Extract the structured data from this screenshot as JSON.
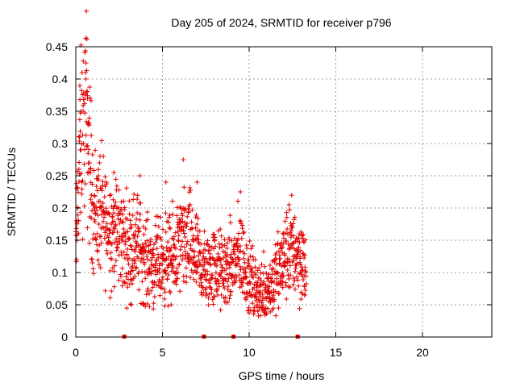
{
  "chart_data": {
    "type": "scatter",
    "title": "Day 205 of 2024, SRMTID for receiver p796",
    "xlabel": "GPS time / hours",
    "ylabel": "SRMTID / TECUs",
    "xlim": [
      0,
      24
    ],
    "ylim": [
      0,
      0.45
    ],
    "xticks": [
      "0",
      "5",
      "10",
      "15",
      "20"
    ],
    "yticks": [
      "0",
      "0.05",
      "0.1",
      "0.15",
      "0.2",
      "0.25",
      "0.3",
      "0.35",
      "0.4",
      "0.45"
    ],
    "grid": true,
    "marker": "plus",
    "color": "#e00000",
    "x_data_extent": [
      0,
      13.3
    ],
    "gap_markers_x": [
      2.8,
      7.4,
      9.1,
      12.8
    ],
    "series": [
      {
        "name": "SRMTID",
        "trend": [
          {
            "x": 0.0,
            "y": 0.13
          },
          {
            "x": 0.2,
            "y": 0.28
          },
          {
            "x": 0.6,
            "y": 0.35
          },
          {
            "x": 1.0,
            "y": 0.2
          },
          {
            "x": 1.5,
            "y": 0.19
          },
          {
            "x": 2.0,
            "y": 0.17
          },
          {
            "x": 2.5,
            "y": 0.16
          },
          {
            "x": 3.0,
            "y": 0.14
          },
          {
            "x": 3.5,
            "y": 0.15
          },
          {
            "x": 4.0,
            "y": 0.12
          },
          {
            "x": 4.5,
            "y": 0.11
          },
          {
            "x": 5.0,
            "y": 0.12
          },
          {
            "x": 5.5,
            "y": 0.12
          },
          {
            "x": 6.0,
            "y": 0.14
          },
          {
            "x": 6.5,
            "y": 0.15
          },
          {
            "x": 7.0,
            "y": 0.12
          },
          {
            "x": 7.5,
            "y": 0.1
          },
          {
            "x": 8.0,
            "y": 0.11
          },
          {
            "x": 8.5,
            "y": 0.1
          },
          {
            "x": 9.0,
            "y": 0.11
          },
          {
            "x": 9.5,
            "y": 0.13
          },
          {
            "x": 10.0,
            "y": 0.09
          },
          {
            "x": 10.5,
            "y": 0.07
          },
          {
            "x": 11.0,
            "y": 0.07
          },
          {
            "x": 11.5,
            "y": 0.09
          },
          {
            "x": 12.0,
            "y": 0.12
          },
          {
            "x": 12.5,
            "y": 0.14
          },
          {
            "x": 13.0,
            "y": 0.12
          },
          {
            "x": 13.3,
            "y": 0.1
          }
        ],
        "points": [
          {
            "x": 0.05,
            "y": 0.12
          },
          {
            "x": 0.08,
            "y": 0.15
          },
          {
            "x": 0.12,
            "y": 0.2
          },
          {
            "x": 0.18,
            "y": 0.26
          },
          {
            "x": 0.22,
            "y": 0.31
          },
          {
            "x": 0.3,
            "y": 0.29
          },
          {
            "x": 0.35,
            "y": 0.24
          },
          {
            "x": 0.45,
            "y": 0.3
          },
          {
            "x": 0.55,
            "y": 0.41
          },
          {
            "x": 0.58,
            "y": 0.4
          },
          {
            "x": 0.62,
            "y": 0.38
          },
          {
            "x": 0.68,
            "y": 0.37
          },
          {
            "x": 0.7,
            "y": 0.33
          },
          {
            "x": 0.8,
            "y": 0.27
          },
          {
            "x": 0.9,
            "y": 0.22
          },
          {
            "x": 1.1,
            "y": 0.2
          },
          {
            "x": 1.3,
            "y": 0.25
          },
          {
            "x": 1.5,
            "y": 0.19
          },
          {
            "x": 2.2,
            "y": 0.255
          },
          {
            "x": 3.7,
            "y": 0.25
          },
          {
            "x": 5.2,
            "y": 0.24
          },
          {
            "x": 6.2,
            "y": 0.275
          },
          {
            "x": 7.0,
            "y": 0.24
          },
          {
            "x": 9.5,
            "y": 0.225
          },
          {
            "x": 12.3,
            "y": 0.205
          },
          {
            "x": 3.2,
            "y": 0.05
          },
          {
            "x": 5.5,
            "y": 0.05
          },
          {
            "x": 10.5,
            "y": 0.04
          },
          {
            "x": 11.7,
            "y": 0.045
          },
          {
            "x": 13.2,
            "y": 0.065
          }
        ]
      }
    ]
  }
}
